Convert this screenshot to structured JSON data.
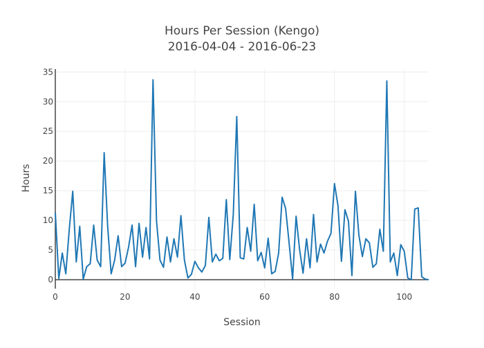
{
  "chart_data": {
    "type": "line",
    "title": "Hours Per Session (Kengo)",
    "subtitle": "2016-04-04 - 2016-06-23",
    "xlabel": "Session",
    "ylabel": "Hours",
    "xlim": [
      0,
      107
    ],
    "ylim": [
      -1.5,
      35.5
    ],
    "x_ticks": [
      0,
      20,
      40,
      60,
      80,
      100
    ],
    "y_ticks": [
      0,
      5,
      10,
      15,
      20,
      25,
      30,
      35
    ],
    "grid": true,
    "line_color": "#1f77b4",
    "series": [
      {
        "values": [
          11.3,
          0.2,
          4.5,
          1.0,
          8.5,
          14.9,
          3.0,
          9.0,
          0.1,
          2.2,
          2.7,
          9.2,
          3.3,
          2.2,
          21.4,
          9.0,
          1.0,
          3.3,
          7.4,
          2.2,
          2.8,
          5.5,
          9.2,
          2.2,
          9.5,
          3.8,
          8.8,
          3.5,
          33.7,
          9.9,
          3.3,
          2.1,
          7.2,
          3.0,
          6.9,
          3.8,
          10.8,
          3.3,
          0.3,
          0.9,
          3.1,
          2.0,
          1.3,
          2.4,
          10.5,
          3.0,
          4.3,
          3.2,
          3.6,
          13.5,
          3.4,
          11.0,
          27.5,
          3.7,
          3.5,
          8.8,
          4.8,
          12.7,
          3.2,
          4.6,
          2.0,
          7.0,
          1.0,
          1.4,
          4.5,
          13.9,
          12.0,
          6.2,
          0.1,
          10.7,
          5.1,
          1.1,
          6.9,
          2.0,
          11.0,
          3.0,
          6.0,
          4.5,
          6.5,
          7.8,
          16.2,
          12.5,
          3.1,
          11.8,
          9.9,
          0.7,
          14.9,
          7.5,
          3.9,
          6.9,
          6.2,
          2.1,
          2.7,
          8.5,
          4.8,
          33.5,
          3.0,
          4.5,
          0.7,
          5.9,
          4.8,
          0.3,
          0.0,
          11.9,
          12.1,
          0.5,
          0.1,
          0.0
        ]
      }
    ]
  }
}
